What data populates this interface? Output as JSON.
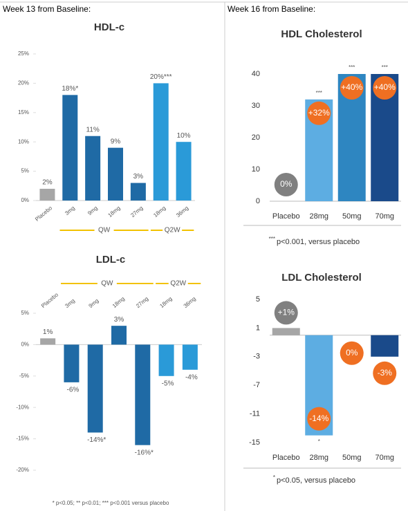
{
  "headers": [
    "Week 13 from Baseline:",
    "Week 16 from Baseline:"
  ],
  "chart_data": [
    {
      "type": "bar",
      "title": "HDL-c",
      "categories": [
        "Placebo",
        "3mg",
        "9mg",
        "18mg",
        "27mg",
        "18mg",
        "36mg"
      ],
      "groups": [
        null,
        "QW",
        "QW",
        "QW",
        "QW",
        "Q2W",
        "Q2W"
      ],
      "values": [
        2,
        18,
        11,
        9,
        3,
        20,
        10
      ],
      "value_labels": [
        "2%",
        "18%*",
        "11%",
        "9%",
        "3%",
        "20%***",
        "10%"
      ],
      "colors": [
        "#a6a6a6",
        "#1f6aa5",
        "#1f6aa5",
        "#1f6aa5",
        "#1f6aa5",
        "#2a9ad8",
        "#2a9ad8"
      ],
      "ylim": [
        0,
        25
      ],
      "yticks": [
        {
          "value": 0,
          "label": "0%"
        },
        {
          "value": 5,
          "label": "5%"
        },
        {
          "value": 10,
          "label": "10%"
        },
        {
          "value": 15,
          "label": "15%"
        },
        {
          "value": 20,
          "label": "20%"
        },
        {
          "value": 25,
          "label": "25%"
        }
      ]
    },
    {
      "type": "bar",
      "title": "LDL-c",
      "categories": [
        "Placebo",
        "3mg",
        "9mg",
        "18mg",
        "27mg",
        "18mg",
        "36mg"
      ],
      "groups": [
        null,
        "QW",
        "QW",
        "QW",
        "QW",
        "Q2W",
        "Q2W"
      ],
      "values": [
        1,
        -6,
        -14,
        3,
        -16,
        -5,
        -4
      ],
      "value_labels": [
        "1%",
        "-6%",
        "-14%*",
        "3%",
        "-16%*",
        "-5%",
        "-4%"
      ],
      "colors": [
        "#a6a6a6",
        "#1f6aa5",
        "#1f6aa5",
        "#1f6aa5",
        "#1f6aa5",
        "#2a9ad8",
        "#2a9ad8"
      ],
      "ylim": [
        -20,
        5
      ],
      "yticks": [
        {
          "value": -20,
          "label": "-20%"
        },
        {
          "value": -15,
          "label": "-15%"
        },
        {
          "value": -10,
          "label": "-10%"
        },
        {
          "value": -5,
          "label": "-5%"
        },
        {
          "value": 0,
          "label": "0%"
        },
        {
          "value": 5,
          "label": "5%"
        }
      ],
      "note": "* p<0.05; ** p<0.01; *** p<0.001 versus placebo"
    },
    {
      "type": "bar",
      "title": "HDL Cholesterol",
      "categories": [
        "Placebo",
        "28mg",
        "50mg",
        "70mg"
      ],
      "values": [
        0,
        32,
        40,
        40
      ],
      "value_labels": [
        "0%",
        "+32%",
        "+40%",
        "+40%"
      ],
      "stars": [
        null,
        "***",
        "***",
        "***"
      ],
      "colors": [
        "#a6a6a6",
        "#5dade2",
        "#2e86c1",
        "#1a4a8a"
      ],
      "ylim": [
        0,
        45
      ],
      "yticks": [
        0,
        10,
        20,
        30,
        40
      ],
      "note_mark": "***",
      "note": "p<0.001, versus placebo"
    },
    {
      "type": "bar",
      "title": "LDL Cholesterol",
      "categories": [
        "Placebo",
        "28mg",
        "50mg",
        "70mg"
      ],
      "values": [
        1,
        -14,
        0,
        -3
      ],
      "value_labels": [
        "+1%",
        "-14%",
        "0%",
        "-3%"
      ],
      "stars": [
        null,
        "*",
        null,
        null
      ],
      "colors": [
        "#a6a6a6",
        "#5dade2",
        "#2e86c1",
        "#1a4a8a"
      ],
      "ylim": [
        -15,
        5
      ],
      "yticks": [
        -15,
        -11,
        -7,
        -3,
        1,
        5
      ],
      "note_mark": "*",
      "note": "p<0.05, versus placebo"
    }
  ]
}
